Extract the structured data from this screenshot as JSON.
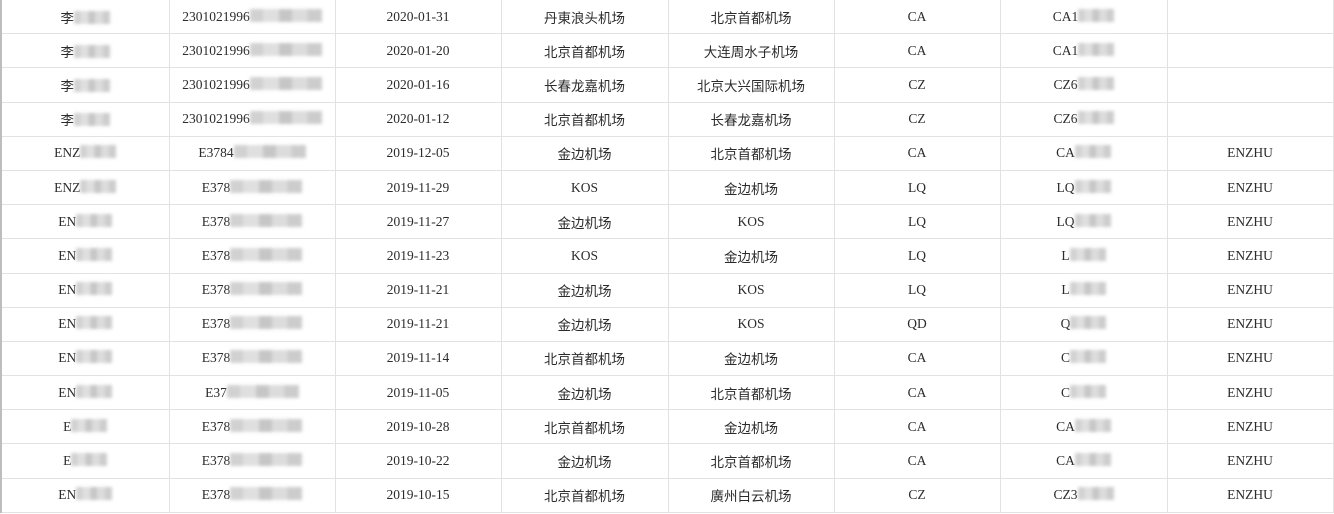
{
  "rows": [
    {
      "name": "李",
      "id": "2301021996",
      "date": "2020-01-31",
      "from": "丹東浪头机场",
      "to": "北京首都机场",
      "airline": "CA",
      "flight": "CA1",
      "agent": ""
    },
    {
      "name": "李",
      "id": "2301021996",
      "date": "2020-01-20",
      "from": "北京首都机场",
      "to": "大连周水子机场",
      "airline": "CA",
      "flight": "CA1",
      "agent": ""
    },
    {
      "name": "李",
      "id": "2301021996",
      "date": "2020-01-16",
      "from": "长春龙嘉机场",
      "to": "北京大兴国际机场",
      "airline": "CZ",
      "flight": "CZ6",
      "agent": ""
    },
    {
      "name": "李",
      "id": "2301021996",
      "date": "2020-01-12",
      "from": "北京首都机场",
      "to": "长春龙嘉机场",
      "airline": "CZ",
      "flight": "CZ6",
      "agent": ""
    },
    {
      "name": "ENZ",
      "id": "E3784",
      "date": "2019-12-05",
      "from": "金边机场",
      "to": "北京首都机场",
      "airline": "CA",
      "flight": "CA",
      "agent": "ENZHU"
    },
    {
      "name": "ENZ",
      "id": "E378",
      "date": "2019-11-29",
      "from": "KOS",
      "to": "金边机场",
      "airline": "LQ",
      "flight": "LQ",
      "agent": "ENZHU"
    },
    {
      "name": "EN",
      "id": "E378",
      "date": "2019-11-27",
      "from": "金边机场",
      "to": "KOS",
      "airline": "LQ",
      "flight": "LQ",
      "agent": "ENZHU"
    },
    {
      "name": "EN",
      "id": "E378",
      "date": "2019-11-23",
      "from": "KOS",
      "to": "金边机场",
      "airline": "LQ",
      "flight": "L",
      "agent": "ENZHU"
    },
    {
      "name": "EN",
      "id": "E378",
      "date": "2019-11-21",
      "from": "金边机场",
      "to": "KOS",
      "airline": "LQ",
      "flight": "L",
      "agent": "ENZHU"
    },
    {
      "name": "EN",
      "id": "E378",
      "date": "2019-11-21",
      "from": "金边机场",
      "to": "KOS",
      "airline": "QD",
      "flight": "Q",
      "agent": "ENZHU"
    },
    {
      "name": "EN",
      "id": "E378",
      "date": "2019-11-14",
      "from": "北京首都机场",
      "to": "金边机场",
      "airline": "CA",
      "flight": "C",
      "agent": "ENZHU"
    },
    {
      "name": "EN",
      "id": "E37",
      "date": "2019-11-05",
      "from": "金边机场",
      "to": "北京首都机场",
      "airline": "CA",
      "flight": "C",
      "agent": "ENZHU"
    },
    {
      "name": "E",
      "id": "E378",
      "date": "2019-10-28",
      "from": "北京首都机场",
      "to": "金边机场",
      "airline": "CA",
      "flight": "CA",
      "agent": "ENZHU"
    },
    {
      "name": "E",
      "id": "E378",
      "date": "2019-10-22",
      "from": "金边机场",
      "to": "北京首都机场",
      "airline": "CA",
      "flight": "CA",
      "agent": "ENZHU"
    },
    {
      "name": "EN",
      "id": "E378",
      "date": "2019-10-15",
      "from": "北京首都机场",
      "to": "廣州白云机场",
      "airline": "CZ",
      "flight": "CZ3",
      "agent": "ENZHU"
    }
  ],
  "colors": {
    "grid": "#e2e2e2",
    "active_row_marker": "#217346",
    "redaction": "#c9c9c9"
  }
}
